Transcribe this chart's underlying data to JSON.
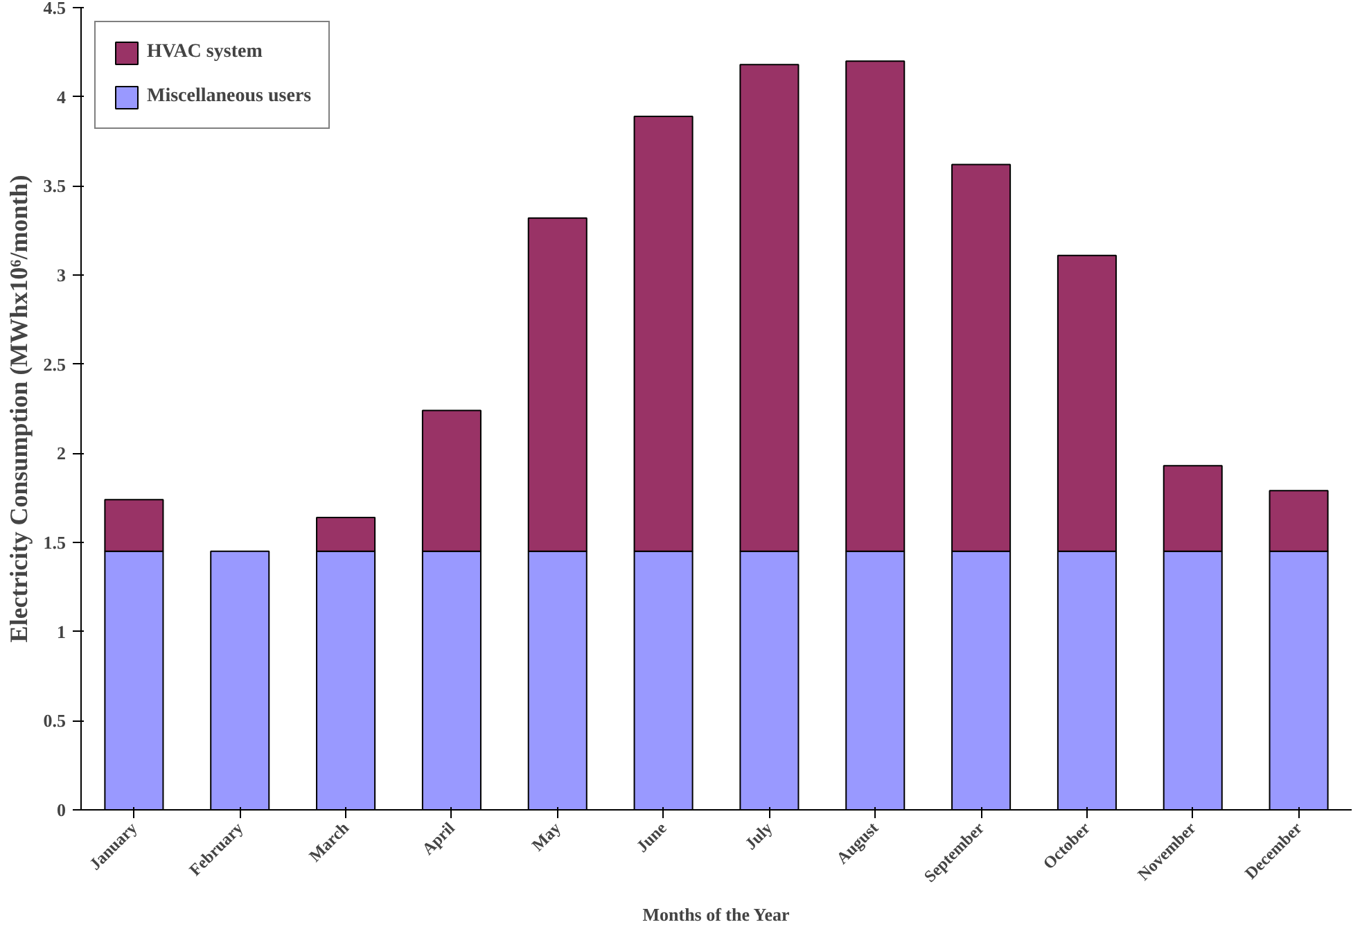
{
  "chart_data": {
    "type": "bar",
    "stacked": true,
    "xlabel": "Months of the Year",
    "ylabel": "Electricity Consumption (MWhx10⁶/month)",
    "categories": [
      "January",
      "February",
      "March",
      "April",
      "May",
      "June",
      "July",
      "August",
      "September",
      "October",
      "November",
      "December"
    ],
    "series": [
      {
        "name": "Miscellaneous users",
        "color": "#9999ff",
        "values": [
          1.45,
          1.45,
          1.45,
          1.45,
          1.45,
          1.45,
          1.45,
          1.45,
          1.45,
          1.45,
          1.45,
          1.45
        ]
      },
      {
        "name": "HVAC system",
        "color": "#993366",
        "values": [
          0.29,
          null,
          0.19,
          0.79,
          1.87,
          2.44,
          2.73,
          2.75,
          2.17,
          1.66,
          0.48,
          0.34
        ]
      }
    ],
    "ylim": [
      0,
      4.5
    ],
    "yticks": [
      0,
      0.5,
      1,
      1.5,
      2,
      2.5,
      3,
      3.5,
      4,
      4.5
    ],
    "grid": false,
    "legend": "top left"
  }
}
